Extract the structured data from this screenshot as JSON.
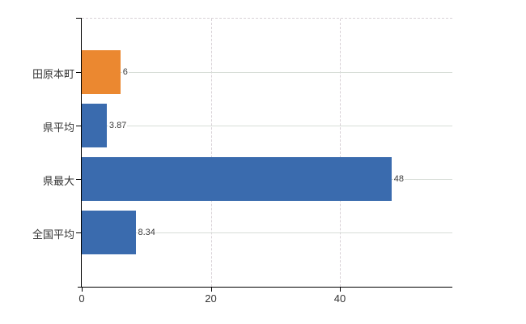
{
  "chart_data": {
    "type": "bar",
    "orientation": "horizontal",
    "title": "",
    "categories": [
      "田原本町",
      "県平均",
      "県最大",
      "全国平均"
    ],
    "values": [
      6,
      3.87,
      48,
      8.34
    ],
    "value_labels": [
      "6",
      "3.87",
      "48",
      "8.34"
    ],
    "series_colors": [
      "#eb8830",
      "#3a6bae",
      "#3a6bae",
      "#3a6bae"
    ],
    "highlight_color": "#eb8830",
    "base_color": "#3a6bae",
    "x_ticks": [
      0,
      20,
      40
    ],
    "x_tick_labels": [
      "0",
      "20",
      "40"
    ],
    "xlim": [
      0,
      57.4
    ],
    "grid": {
      "vertical_style": "dashed",
      "horizontal_style": "solid",
      "vertical_color": "#d8d1d6",
      "horizontal_color": "#d8ded8",
      "top_border_style": "dashed"
    },
    "axis_color": "#000000",
    "label_color": "#333333",
    "legend": null
  }
}
